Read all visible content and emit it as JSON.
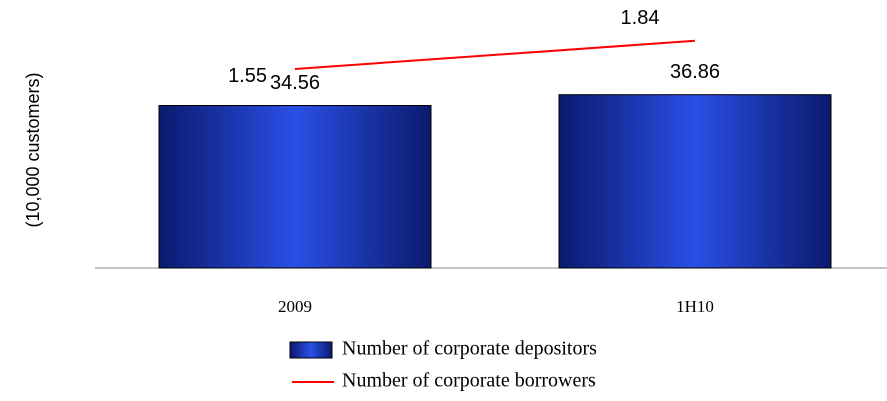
{
  "chart_data": {
    "type": "combo",
    "y_label": "(10,000 customers)",
    "categories": [
      "2009",
      "1H10"
    ],
    "series": [
      {
        "name": "Number of corporate depositors",
        "type": "bar",
        "color": "#2a4fe6",
        "values": [
          34.56,
          36.86
        ]
      },
      {
        "name": "Number of corporate borrowers",
        "type": "line",
        "axis": "y2",
        "color": "#ff0000",
        "values": [
          1.55,
          1.84
        ]
      }
    ],
    "ylim": [
      0,
      57
    ],
    "y2lim": [
      -0.5,
      2.26
    ],
    "legend": "bottom",
    "grid": false
  }
}
